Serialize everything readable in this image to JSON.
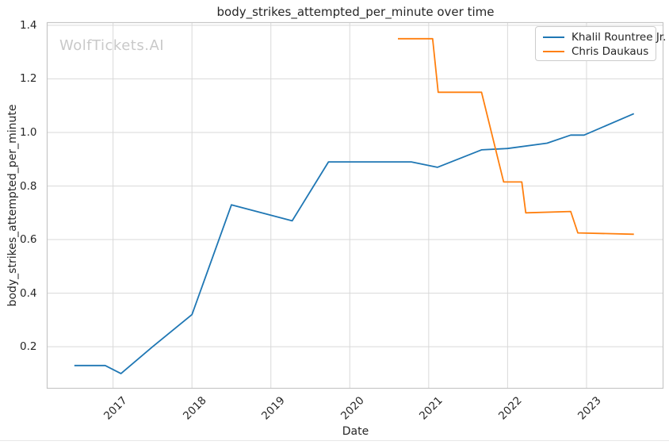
{
  "watermark": {
    "text": "WolfTickets.AI",
    "color": "#c9c9c9"
  },
  "chart_data": {
    "type": "line",
    "title": "body_strikes_attempted_per_minute over time",
    "xlabel": "Date",
    "ylabel": "body_strikes_attempted_per_minute",
    "xlim": [
      2016.165,
      2023.97
    ],
    "ylim": [
      0.045,
      1.41
    ],
    "xticks": [
      2017,
      2018,
      2019,
      2020,
      2021,
      2022,
      2023
    ],
    "xtick_labels": [
      "2017",
      "2018",
      "2019",
      "2020",
      "2021",
      "2022",
      "2023"
    ],
    "yticks": [
      0.2,
      0.4,
      0.6,
      0.8,
      1.0,
      1.2,
      1.4
    ],
    "ytick_labels": [
      "0.2",
      "0.4",
      "0.6",
      "0.8",
      "1.0",
      "1.2",
      "1.4"
    ],
    "grid": true,
    "legend_position": "upper right",
    "series": [
      {
        "name": "Khalil Rountree Jr.",
        "color": "#1f77b4",
        "x": [
          2016.51,
          2016.9,
          2017.1,
          2017.5,
          2018.0,
          2018.5,
          2019.27,
          2019.73,
          2020.78,
          2021.11,
          2021.67,
          2022.0,
          2022.5,
          2022.8,
          2022.97,
          2023.6
        ],
        "y": [
          0.13,
          0.13,
          0.1,
          0.2,
          0.32,
          0.73,
          0.67,
          0.89,
          0.89,
          0.87,
          0.935,
          0.94,
          0.96,
          0.99,
          0.99,
          1.07
        ]
      },
      {
        "name": "Chris Daukaus",
        "color": "#ff7f0e",
        "x": [
          2020.61,
          2021.05,
          2021.12,
          2021.67,
          2021.95,
          2022.18,
          2022.23,
          2022.8,
          2022.89,
          2023.6
        ],
        "y": [
          1.35,
          1.35,
          1.15,
          1.15,
          0.815,
          0.815,
          0.7,
          0.705,
          0.625,
          0.62
        ]
      }
    ]
  },
  "style": {
    "grid_color": "#d9d9d9",
    "spine_color": "#c6c6c6",
    "text_color": "#262626",
    "background": "#ffffff"
  }
}
